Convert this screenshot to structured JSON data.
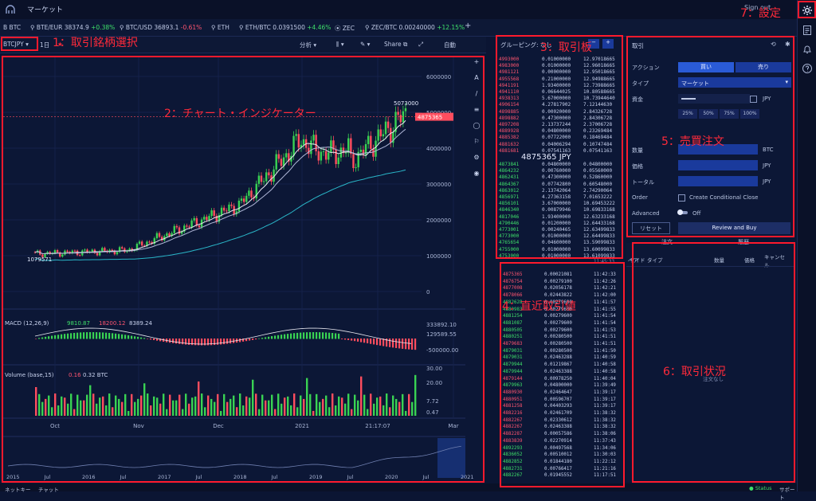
{
  "app": {
    "title": "マーケット",
    "sign_out": "Sign out"
  },
  "tickers": [
    {
      "prefix": "B",
      "name": "BTC",
      "value": "",
      "change": "",
      "dir": ""
    },
    {
      "prefix": "",
      "name": "BTE/EUR",
      "value": "38374.9",
      "change": "+0.38%",
      "dir": "up"
    },
    {
      "prefix": "",
      "name": "BTC/USD",
      "value": "36893.1",
      "change": "-0.61%",
      "dir": "dn"
    },
    {
      "prefix": "",
      "name": "ETH",
      "value": "",
      "change": "",
      "dir": ""
    },
    {
      "prefix": "",
      "name": "ETH/BTC",
      "value": "0.0391500",
      "change": "+4.46%",
      "dir": "up"
    },
    {
      "prefix": "",
      "name": "ZEC",
      "value": "",
      "change": "",
      "dir": ""
    },
    {
      "prefix": "",
      "name": "ZEC/BTC",
      "value": "0.00240000",
      "change": "+12.15%",
      "dir": "up"
    }
  ],
  "add_tab": "+",
  "toolbar": {
    "pair": "BTCJPY",
    "interval": "1日",
    "indicator": "分析",
    "share": "Share",
    "auto": "自動"
  },
  "chart": {
    "price_last": "4875365",
    "price_high_label": "5073000",
    "price_low_label": "1079571",
    "y_ticks": [
      "6000000",
      "5000000",
      "4000000",
      "3000000",
      "2000000",
      "1000000",
      "0"
    ],
    "macd_label": "MACD (12,26,9)",
    "macd_vals": [
      "9810.87",
      "18200.12",
      "8389.24"
    ],
    "macd_ticks": [
      "333892.10",
      "129589.55",
      "-500000.00"
    ],
    "vol_label": "Volume (base,15)",
    "vol_vals": [
      "0.16",
      "0.32 BTC"
    ],
    "vol_ticks": [
      "30.00",
      "20.00",
      "7.72",
      "0.47"
    ],
    "time_ticks": [
      "Oct",
      "Nov",
      "Dec",
      "2021",
      "21:17:07",
      "Mar"
    ],
    "overview_ticks": [
      "2015",
      "Jul",
      "2016",
      "Jul",
      "2017",
      "Jul",
      "2018",
      "Jul",
      "2019",
      "Jul",
      "2020",
      "Jul",
      "2021"
    ],
    "colors": {
      "up": "#39d353",
      "down": "#ff4d5e",
      "ma1": "#e8e8f0",
      "ma2": "#b0b8d8",
      "ma3": "#2ab6c8"
    }
  },
  "orderbook": {
    "grouping": "グルーピング: なし",
    "asks": [
      [
        "4993000",
        "0.01000000",
        "12.97018665"
      ],
      [
        "4983000",
        "0.01000000",
        "12.96018665"
      ],
      [
        "4981121",
        "0.00000000",
        "12.95018665"
      ],
      [
        "4955568",
        "0.21000000",
        "12.94988665"
      ],
      [
        "4941191",
        "1.93400000",
        "12.73988665"
      ],
      [
        "4941110",
        "0.06644025",
        "10.80588665"
      ],
      [
        "4938313",
        "5.67000000",
        "10.73944640"
      ],
      [
        "4906154",
        "4.27817902",
        "7.12144630"
      ],
      [
        "4898885",
        "0.00020000",
        "2.84326728"
      ],
      [
        "4898882",
        "0.47300000",
        "2.84306728"
      ],
      [
        "4897208",
        "2.13737244",
        "2.37006728"
      ],
      [
        "4889928",
        "0.04800000",
        "0.23269484"
      ],
      [
        "4885382",
        "0.07722000",
        "0.18469484"
      ],
      [
        "4881632",
        "0.04006294",
        "0.10747484"
      ],
      [
        "4881681",
        "0.07541163",
        "0.07541163"
      ]
    ],
    "mid_price": "4875365 JPY",
    "bids": [
      [
        "4873841",
        "0.04800000",
        "0.04800000"
      ],
      [
        "4864232",
        "0.00760000",
        "0.05560000"
      ],
      [
        "4862431",
        "0.47300000",
        "0.52860000"
      ],
      [
        "4864367",
        "0.07742800",
        "0.60548000"
      ],
      [
        "4863012",
        "2.13742064",
        "2.74290064"
      ],
      [
        "4856971",
        "4.27363158",
        "7.01653222"
      ],
      [
        "4856101",
        "3.67000000",
        "10.69453222"
      ],
      [
        "4846340",
        "0.00879946",
        "10.69833168"
      ],
      [
        "4817046",
        "1.93400000",
        "12.63233168"
      ],
      [
        "4790446",
        "0.01200000",
        "12.64433168"
      ],
      [
        "4773001",
        "0.00240465",
        "12.63499833"
      ],
      [
        "4773000",
        "0.01000000",
        "12.64499833"
      ],
      [
        "4765654",
        "0.04600000",
        "13.59099833"
      ],
      [
        "4755000",
        "0.01000000",
        "13.60099833"
      ],
      [
        "4753000",
        "0.01000000",
        "13.61099833"
      ]
    ]
  },
  "trades": {
    "rows": [
      [
        "4875365",
        "0.00021081",
        "11:42:33",
        "dn"
      ],
      [
        "4876754",
        "0.00279100",
        "11:42:26",
        "dn"
      ],
      [
        "4877008",
        "0.02056178",
        "11:42:21",
        "dn"
      ],
      [
        "4878066",
        "0.02443822",
        "11:42:00",
        "dn"
      ],
      [
        "4882628",
        "0.00279600",
        "11:41:57",
        "up"
      ],
      [
        "4880983",
        "0.00279600",
        "11:41:55",
        "up"
      ],
      [
        "4881254",
        "0.00279600",
        "11:41:54",
        "up"
      ],
      [
        "4881087",
        "0.00279600",
        "11:41:54",
        "up"
      ],
      [
        "4880505",
        "0.00279600",
        "11:41:53",
        "up"
      ],
      [
        "4880251",
        "0.00280500",
        "11:41:51",
        "up"
      ],
      [
        "4879683",
        "0.00280500",
        "11:41:51",
        "dn"
      ],
      [
        "4879031",
        "0.00280500",
        "11:41:50",
        "up"
      ],
      [
        "4879031",
        "0.02463288",
        "11:40:59",
        "up"
      ],
      [
        "4879944",
        "0.01219867",
        "11:40:58",
        "up"
      ],
      [
        "4879944",
        "0.02463388",
        "11:40:58",
        "up"
      ],
      [
        "4879144",
        "0.00978250",
        "11:40:04",
        "dn"
      ],
      [
        "4879963",
        "0.04800000",
        "11:39:49",
        "up"
      ],
      [
        "4880930",
        "0.02464647",
        "11:39:17",
        "dn"
      ],
      [
        "4880951",
        "0.00596707",
        "11:39:17",
        "dn"
      ],
      [
        "4881258",
        "0.04403293",
        "11:39:17",
        "dn"
      ],
      [
        "4882216",
        "0.02461709",
        "11:38:32",
        "dn"
      ],
      [
        "4882267",
        "0.02330612",
        "11:38:32",
        "dn"
      ],
      [
        "4882267",
        "0.02463388",
        "11:38:32",
        "dn"
      ],
      [
        "4882287",
        "0.00057586",
        "11:38:06",
        "dn"
      ],
      [
        "4883839",
        "0.02270914",
        "11:37:43",
        "dn"
      ],
      [
        "4892293",
        "0.00497568",
        "11:34:06",
        "up"
      ],
      [
        "4836052",
        "0.00510012",
        "11:30:03",
        "up"
      ],
      [
        "4882852",
        "0.01844180",
        "11:22:12",
        "up"
      ],
      [
        "4882731",
        "0.00766417",
        "11:21:16",
        "up"
      ],
      [
        "4882267",
        "0.01945552",
        "11:17:51",
        "up"
      ]
    ],
    "time_head": "11:45:33"
  },
  "order_form": {
    "header": "取引",
    "action_label": "アクション",
    "buy": "買い",
    "sell": "売り",
    "type_label": "タイプ",
    "type_value": "マーケット",
    "funds_label": "資金",
    "funds_unit": "JPY",
    "pct": [
      "25%",
      "50%",
      "75%",
      "100%"
    ],
    "qty_label": "数量",
    "qty_unit": "BTC",
    "price_label": "価格",
    "price_unit": "JPY",
    "total_label": "トータル",
    "total_unit": "JPY",
    "order_label": "Order",
    "conditional": "Create Conditional Close",
    "advanced_label": "Advanced",
    "advanced_state": "Off",
    "reset": "リセット",
    "review": "Review and Buy"
  },
  "status_panel": {
    "tabs": [
      "注文",
      "履歴"
    ],
    "cols": [
      "ペア",
      "サイド",
      "タイプ",
      "数量",
      "価格",
      "キャンセル"
    ],
    "empty": "注文なし"
  },
  "bottom": {
    "left1": "ネットキー",
    "left2": "チャット",
    "status": "Status",
    "support": "サポート"
  },
  "annotations": {
    "a1": "1：取引銘柄選択",
    "a2": "2：チャート・インジケーター",
    "a3": "3：取引板",
    "a4": "4：直近取引値",
    "a5": "5：売買注文",
    "a6": "6：取引状況",
    "a7": "7：設定"
  }
}
